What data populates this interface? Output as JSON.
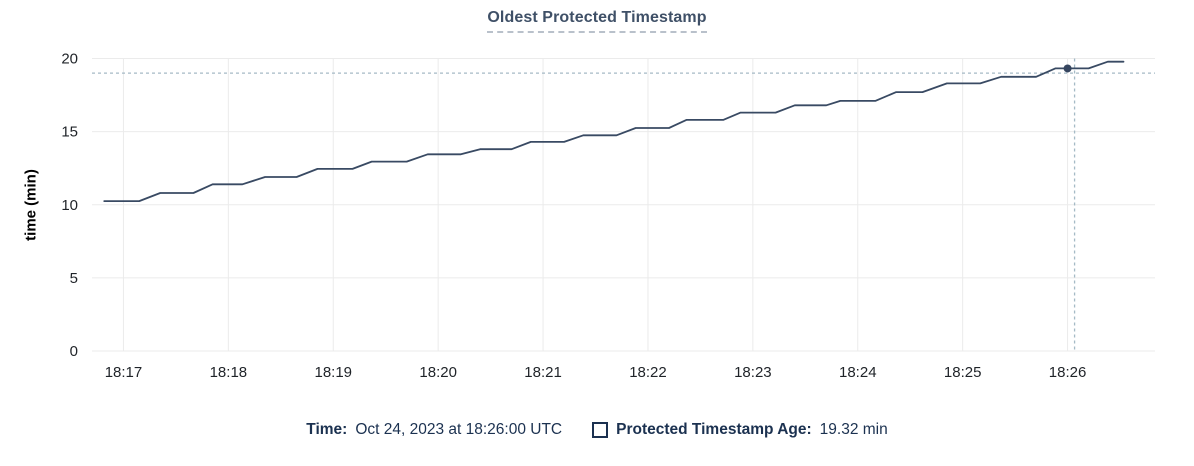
{
  "chart_data": {
    "type": "line",
    "title": "Oldest Protected Timestamp",
    "xlabel": "",
    "ylabel": "time (min)",
    "y_ticks": [
      0,
      5,
      10,
      15,
      20
    ],
    "ylim": [
      0,
      20
    ],
    "x_ticks": [
      "18:17",
      "18:18",
      "18:19",
      "18:20",
      "18:21",
      "18:22",
      "18:23",
      "18:24",
      "18:25",
      "18:26"
    ],
    "x_range": [
      "18:16:42",
      "18:26:50"
    ],
    "grid": true,
    "legend_position": "bottom",
    "series": [
      {
        "name": "Protected Timestamp Age",
        "unit": "min",
        "points": [
          [
            "18:16:49",
            10.25
          ],
          [
            "18:17:09",
            10.25
          ],
          [
            "18:17:21",
            10.8
          ],
          [
            "18:17:40",
            10.8
          ],
          [
            "18:17:51",
            11.4
          ],
          [
            "18:18:08",
            11.4
          ],
          [
            "18:18:21",
            11.9
          ],
          [
            "18:18:39",
            11.9
          ],
          [
            "18:18:51",
            12.45
          ],
          [
            "18:19:11",
            12.45
          ],
          [
            "18:19:22",
            12.95
          ],
          [
            "18:19:42",
            12.95
          ],
          [
            "18:19:54",
            13.45
          ],
          [
            "18:20:13",
            13.45
          ],
          [
            "18:20:24",
            13.8
          ],
          [
            "18:20:42",
            13.8
          ],
          [
            "18:20:53",
            14.3
          ],
          [
            "18:21:12",
            14.3
          ],
          [
            "18:21:23",
            14.75
          ],
          [
            "18:21:42",
            14.75
          ],
          [
            "18:21:53",
            15.25
          ],
          [
            "18:22:12",
            15.25
          ],
          [
            "18:22:22",
            15.8
          ],
          [
            "18:22:43",
            15.8
          ],
          [
            "18:22:53",
            16.3
          ],
          [
            "18:23:13",
            16.3
          ],
          [
            "18:23:24",
            16.8
          ],
          [
            "18:23:42",
            16.8
          ],
          [
            "18:23:50",
            17.1
          ],
          [
            "18:24:10",
            17.1
          ],
          [
            "18:24:22",
            17.7
          ],
          [
            "18:24:37",
            17.7
          ],
          [
            "18:24:51",
            18.3
          ],
          [
            "18:25:10",
            18.3
          ],
          [
            "18:25:22",
            18.75
          ],
          [
            "18:25:42",
            18.75
          ],
          [
            "18:25:53",
            19.32
          ],
          [
            "18:26:12",
            19.32
          ],
          [
            "18:26:23",
            19.78
          ],
          [
            "18:26:32",
            19.78
          ]
        ]
      }
    ],
    "hover": {
      "snap_point": {
        "time": "18:26:00",
        "value": 19.32
      },
      "cursor": {
        "time": "18:26:04",
        "value": 19.0
      }
    },
    "colors": {
      "line": "#394a63",
      "marker": "#35455f",
      "crosshair": "#a5bac6",
      "grid": "#ebebeb",
      "tick_text": "#1f2328",
      "title_text": "#3f5067",
      "footer_text": "#1b3150"
    }
  },
  "footer": {
    "time_label": "Time:",
    "time_value": "Oct 24, 2023 at 18:26:00 UTC",
    "series_label": "Protected Timestamp Age:",
    "series_value": "19.32 min"
  }
}
